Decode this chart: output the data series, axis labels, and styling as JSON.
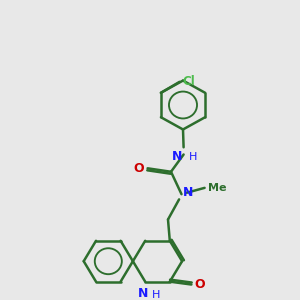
{
  "bg_color": "#e8e8e8",
  "bond_color": "#2d6e2d",
  "N_color": "#1a1aff",
  "O_color": "#cc0000",
  "Cl_color": "#4dbb4d",
  "lw": 1.8,
  "figsize": [
    3.0,
    3.0
  ],
  "dpi": 100,
  "xlim": [
    0,
    10
  ],
  "ylim": [
    0,
    10
  ]
}
